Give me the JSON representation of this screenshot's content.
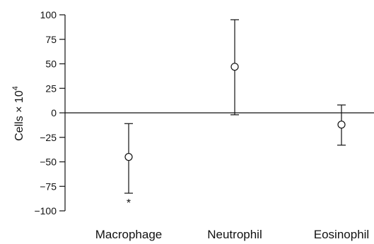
{
  "chart_data": {
    "type": "scatter",
    "title": "",
    "xlabel": "",
    "ylabel": "Cells × 10",
    "ylabel_superscript": "4",
    "ylim": [
      -100,
      100
    ],
    "yticks": [
      100,
      75,
      50,
      25,
      0,
      -25,
      -50,
      -75,
      -100
    ],
    "ytick_labels": [
      "100",
      "75",
      "50",
      "25",
      "0",
      "−25",
      "−50",
      "−75",
      "−100"
    ],
    "categories": [
      "Macrophage",
      "Neutrophil",
      "Eosinophil"
    ],
    "series": [
      {
        "values": [
          -45,
          47,
          -12
        ],
        "error_low": [
          -82,
          -2,
          -33
        ],
        "error_high": [
          -11,
          95,
          8
        ]
      }
    ],
    "annotations": [
      {
        "category": "Macrophage",
        "text": "*",
        "position": "below-error-bar"
      }
    ],
    "grid": false,
    "zero_line": true,
    "legend": "none"
  }
}
